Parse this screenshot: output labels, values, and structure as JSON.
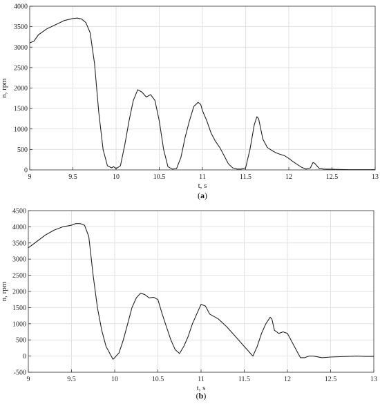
{
  "chart_data": [
    {
      "type": "line",
      "caption": "(a)",
      "xlabel": "t, s",
      "ylabel": "n, rpm",
      "xlim": [
        9,
        13
      ],
      "ylim": [
        0,
        4000
      ],
      "xticks": [
        9,
        9.5,
        10,
        10.5,
        11,
        11.5,
        12,
        12.5,
        13
      ],
      "xtick_labels": [
        "9",
        "9.5",
        "10",
        "10.5",
        "11",
        "11.5",
        "12",
        "12.5",
        "13"
      ],
      "yticks": [
        0,
        500,
        1000,
        1500,
        2000,
        2500,
        3000,
        3500,
        4000
      ],
      "ytick_labels": [
        "0",
        "500",
        "1000",
        "1500",
        "2000",
        "2500",
        "3000",
        "3500",
        "4000"
      ],
      "grid": true,
      "series": [
        {
          "color": "#222222",
          "x": [
            9.0,
            9.05,
            9.1,
            9.2,
            9.3,
            9.4,
            9.5,
            9.55,
            9.6,
            9.65,
            9.7,
            9.75,
            9.8,
            9.85,
            9.9,
            9.95,
            9.97,
            10.0,
            10.05,
            10.1,
            10.15,
            10.2,
            10.25,
            10.3,
            10.35,
            10.4,
            10.45,
            10.5,
            10.55,
            10.6,
            10.65,
            10.7,
            10.75,
            10.8,
            10.85,
            10.9,
            10.95,
            10.98,
            11.0,
            11.05,
            11.1,
            11.15,
            11.2,
            11.25,
            11.3,
            11.35,
            11.4,
            11.45,
            11.5,
            11.55,
            11.6,
            11.63,
            11.65,
            11.7,
            11.75,
            11.8,
            11.85,
            11.9,
            11.95,
            12.0,
            12.05,
            12.1,
            12.15,
            12.2,
            12.25,
            12.28,
            12.3,
            12.35,
            12.4,
            12.5,
            12.6,
            12.7,
            12.8,
            13.0
          ],
          "y": [
            3100,
            3150,
            3300,
            3450,
            3550,
            3650,
            3700,
            3710,
            3690,
            3600,
            3350,
            2600,
            1400,
            500,
            100,
            50,
            80,
            30,
            100,
            600,
            1200,
            1700,
            1960,
            1900,
            1780,
            1840,
            1700,
            1200,
            500,
            80,
            20,
            30,
            300,
            800,
            1200,
            1550,
            1650,
            1600,
            1450,
            1200,
            900,
            700,
            550,
            350,
            150,
            50,
            20,
            20,
            50,
            500,
            1100,
            1300,
            1250,
            750,
            550,
            480,
            420,
            380,
            350,
            280,
            200,
            130,
            60,
            20,
            50,
            180,
            160,
            40,
            20,
            15,
            10,
            5,
            5,
            5
          ]
        }
      ]
    },
    {
      "type": "line",
      "caption": "(b)",
      "xlabel": "t, s",
      "ylabel": "n, rpm",
      "xlim": [
        9,
        13
      ],
      "ylim": [
        -500,
        4500
      ],
      "xticks": [
        9,
        9.5,
        10,
        10.5,
        11,
        11.5,
        12,
        12.5,
        13
      ],
      "xtick_labels": [
        "9",
        "9.5",
        "10",
        "10.5",
        "11",
        "11.5",
        "12",
        "12.5",
        "13"
      ],
      "yticks": [
        -500,
        0,
        500,
        1000,
        1500,
        2000,
        2500,
        3000,
        3500,
        4000,
        4500
      ],
      "ytick_labels": [
        "-500",
        "0",
        "500",
        "1000",
        "1500",
        "2000",
        "2500",
        "3000",
        "3500",
        "4000",
        "4500"
      ],
      "grid": true,
      "series": [
        {
          "color": "#222222",
          "x": [
            9.0,
            9.1,
            9.2,
            9.3,
            9.4,
            9.5,
            9.55,
            9.6,
            9.65,
            9.7,
            9.75,
            9.8,
            9.85,
            9.9,
            9.95,
            9.98,
            10.0,
            10.05,
            10.1,
            10.15,
            10.2,
            10.25,
            10.3,
            10.35,
            10.4,
            10.45,
            10.5,
            10.55,
            10.6,
            10.65,
            10.7,
            10.75,
            10.8,
            10.85,
            10.9,
            10.95,
            11.0,
            11.05,
            11.1,
            11.2,
            11.3,
            11.4,
            11.5,
            11.55,
            11.6,
            11.65,
            11.7,
            11.75,
            11.8,
            11.82,
            11.85,
            11.9,
            11.95,
            12.0,
            12.05,
            12.1,
            12.15,
            12.2,
            12.25,
            12.3,
            12.4,
            12.5,
            12.6,
            12.7,
            12.8,
            12.9,
            13.0
          ],
          "y": [
            3350,
            3550,
            3750,
            3900,
            4000,
            4050,
            4100,
            4100,
            4050,
            3700,
            2500,
            1500,
            800,
            300,
            50,
            -100,
            -50,
            100,
            500,
            1000,
            1500,
            1800,
            1950,
            1900,
            1800,
            1820,
            1750,
            1300,
            900,
            500,
            200,
            80,
            300,
            600,
            1000,
            1300,
            1600,
            1550,
            1300,
            1150,
            900,
            600,
            300,
            150,
            0,
            300,
            700,
            1000,
            1200,
            1150,
            800,
            700,
            750,
            700,
            450,
            200,
            -50,
            -50,
            0,
            0,
            -50,
            -30,
            -20,
            -10,
            0,
            -10,
            -10
          ]
        }
      ]
    }
  ]
}
